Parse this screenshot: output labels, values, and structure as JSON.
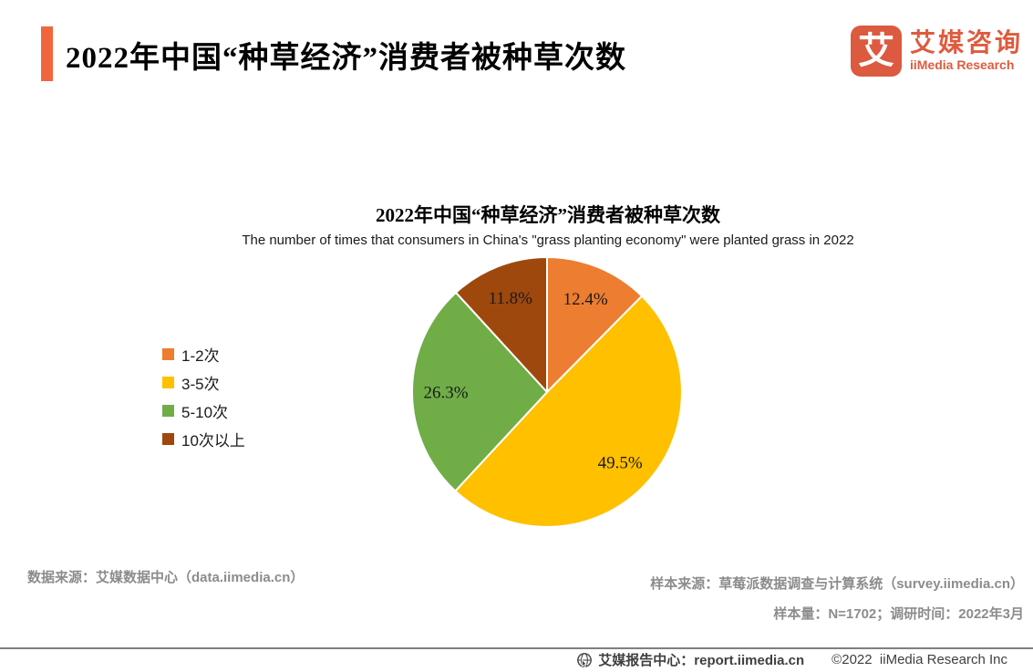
{
  "header": {
    "title": "2022年中国“种草经济”消费者被种草次数",
    "accent_color": "#F2663B",
    "logo": {
      "mark": "艾",
      "mark_bg": "#DC5A40",
      "text_color": "#DE5B3E",
      "name_cn": "艾媒咨询",
      "name_en": "iiMedia Research"
    }
  },
  "chart": {
    "title": "2022年中国“种草经济”消费者被种草次数",
    "subtitle": "The number of times that consumers in China's \"grass planting economy\" were planted grass in 2022"
  },
  "chart_data": {
    "type": "pie",
    "title": "2022年中国“种草经济”消费者被种草次数",
    "subtitle": "The number of times that consumers in China's \"grass planting economy\" were planted grass in 2022",
    "categories": [
      "1-2次",
      "3-5次",
      "5-10次",
      "10次以上"
    ],
    "values": [
      12.4,
      49.5,
      26.3,
      11.8
    ],
    "unit": "%",
    "labels": [
      "12.4%",
      "49.5%",
      "26.3%",
      "11.8%"
    ],
    "colors": [
      "#ED7D31",
      "#FFC000",
      "#70AD47",
      "#9E480E"
    ],
    "start_angle_deg": 0,
    "direction": "clockwise",
    "legend_position": "left"
  },
  "footer": {
    "data_source": "数据来源：艾媒数据中心（data.iimedia.cn）",
    "sample_source": "样本来源：草莓派数据调查与计算系统（survey.iimedia.cn）",
    "sample_info": "样本量：N=1702；调研时间：2022年3月"
  },
  "bottom_bar": {
    "report_center": "艾媒报告中心：report.iimedia.cn",
    "copyright": "©2022  iiMedia Research Inc"
  }
}
